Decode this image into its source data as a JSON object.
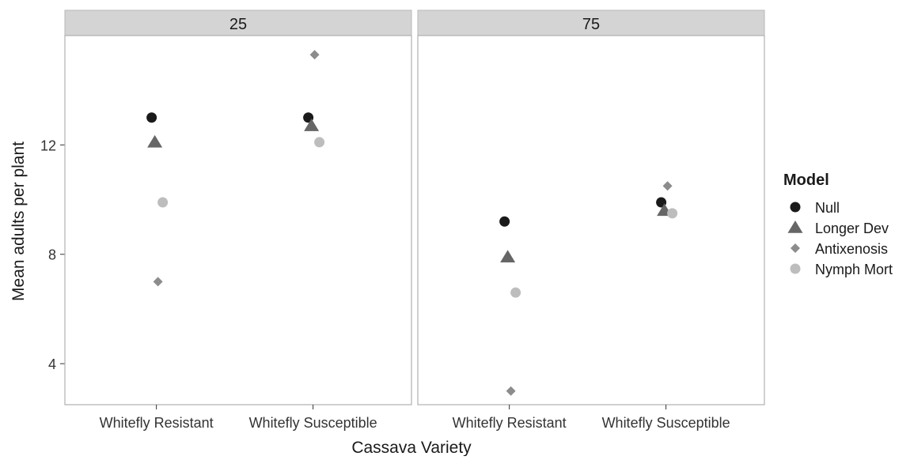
{
  "chart_data": {
    "type": "scatter",
    "xlabel": "Cassava Variety",
    "ylabel": "Mean adults per plant",
    "categories": [
      "Whitefly Resistant",
      "Whitefly Susceptible"
    ],
    "ylim": [
      2.5,
      16
    ],
    "yticks": [
      4,
      8,
      12
    ],
    "facets": [
      "25",
      "75"
    ],
    "grid": false,
    "legend": {
      "title": "Model",
      "position": "right"
    },
    "colors": {
      "Null": "#1a1a1a",
      "Longer Dev": "#666666",
      "Antixenosis": "#8c8c8c",
      "Nymph Mort": "#bdbdbd"
    },
    "shapes": {
      "Null": "circle",
      "Longer Dev": "triangle",
      "Antixenosis": "diamond",
      "Nymph Mort": "circle"
    },
    "series": [
      {
        "name": "Null",
        "values": {
          "25": [
            13.0,
            13.0
          ],
          "75": [
            9.2,
            9.9
          ]
        }
      },
      {
        "name": "Longer Dev",
        "values": {
          "25": [
            12.1,
            12.7
          ],
          "75": [
            7.9,
            9.6
          ]
        }
      },
      {
        "name": "Antixenosis",
        "values": {
          "25": [
            7.0,
            15.3
          ],
          "75": [
            3.0,
            10.5
          ]
        }
      },
      {
        "name": "Nymph Mort",
        "values": {
          "25": [
            9.9,
            12.1
          ],
          "75": [
            6.6,
            9.5
          ]
        }
      }
    ]
  }
}
